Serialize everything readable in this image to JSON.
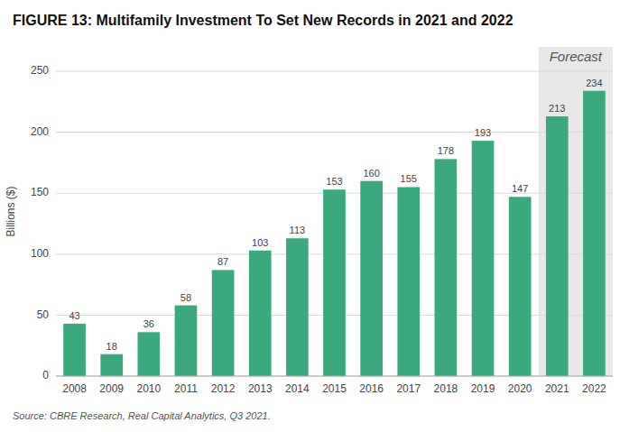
{
  "chart_data": {
    "type": "bar",
    "title": "FIGURE 13: Multifamily Investment To Set New Records in 2021 and 2022",
    "ylabel": "Billions ($)",
    "source": "Source: CBRE Research, Real Capital Analytics, Q3 2021.",
    "categories": [
      "2008",
      "2009",
      "2010",
      "2011",
      "2012",
      "2013",
      "2014",
      "2015",
      "2016",
      "2017",
      "2018",
      "2019",
      "2020",
      "2021",
      "2022"
    ],
    "values": [
      43,
      18,
      36,
      58,
      87,
      103,
      113,
      153,
      160,
      155,
      178,
      193,
      147,
      213,
      234
    ],
    "color": "#3aaa7e",
    "ylim": [
      0,
      270
    ],
    "yticks": [
      0,
      50,
      100,
      150,
      200,
      250
    ],
    "grid": true,
    "data_labels": true,
    "annotations": [
      {
        "text": "Forecast",
        "start": "2021",
        "end": "2022",
        "color": "#e8e8e8"
      }
    ]
  }
}
